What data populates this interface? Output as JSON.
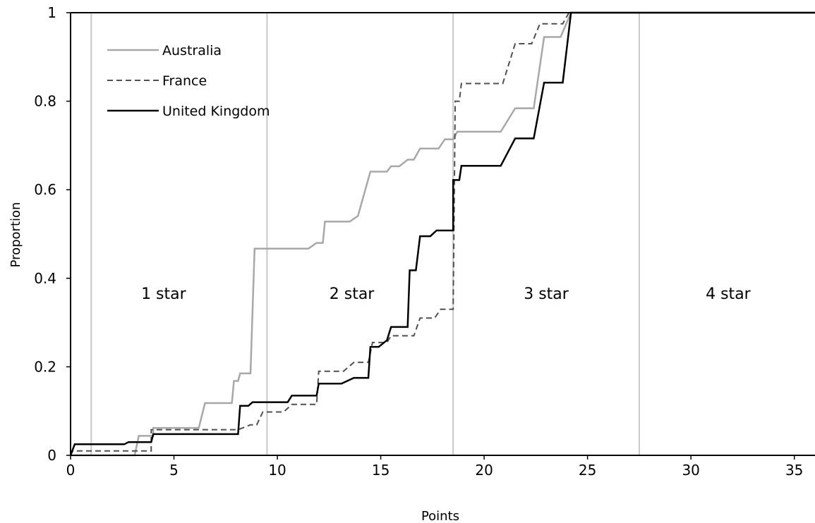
{
  "chart_data": {
    "type": "line",
    "xlabel": "Points",
    "ylabel": "Proportion",
    "xlim": [
      0,
      36
    ],
    "ylim": [
      0,
      1
    ],
    "x_ticks": [
      "0",
      "5",
      "10",
      "15",
      "20",
      "25",
      "30",
      "35"
    ],
    "y_ticks": [
      "0",
      "0.2",
      "0.4",
      "0.6",
      "0.8",
      "1"
    ],
    "grid": false,
    "legend": "top-left",
    "thresholds": [
      1,
      9.5,
      18.5,
      27.5
    ],
    "regions": [
      {
        "label": "1 star",
        "x": 4.5
      },
      {
        "label": "2 star",
        "x": 13.6
      },
      {
        "label": "3 star",
        "x": 23
      },
      {
        "label": "4 star",
        "x": 31.8
      }
    ],
    "series": [
      {
        "name": "Australia",
        "color": "#a8a8a8",
        "style": "solid",
        "points": [
          [
            0,
            0
          ],
          [
            3.1,
            0
          ],
          [
            3.3,
            0.044
          ],
          [
            4,
            0.044
          ],
          [
            4,
            0.062
          ],
          [
            6.2,
            0.062
          ],
          [
            6.5,
            0.118
          ],
          [
            7.8,
            0.118
          ],
          [
            7.9,
            0.168
          ],
          [
            8.1,
            0.168
          ],
          [
            8.2,
            0.185
          ],
          [
            8.7,
            0.185
          ],
          [
            8.9,
            0.467
          ],
          [
            11.5,
            0.467
          ],
          [
            11.9,
            0.48
          ],
          [
            12.2,
            0.48
          ],
          [
            12.3,
            0.528
          ],
          [
            13.5,
            0.528
          ],
          [
            13.9,
            0.541
          ],
          [
            14.5,
            0.641
          ],
          [
            15.3,
            0.641
          ],
          [
            15.5,
            0.653
          ],
          [
            15.9,
            0.653
          ],
          [
            16.3,
            0.668
          ],
          [
            16.6,
            0.668
          ],
          [
            16.9,
            0.693
          ],
          [
            17.8,
            0.693
          ],
          [
            18.1,
            0.714
          ],
          [
            18.5,
            0.714
          ],
          [
            18.7,
            0.731
          ],
          [
            20.8,
            0.731
          ],
          [
            21.5,
            0.784
          ],
          [
            22.4,
            0.784
          ],
          [
            22.9,
            0.945
          ],
          [
            23.7,
            0.945
          ],
          [
            24.2,
            1
          ],
          [
            36,
            1
          ]
        ]
      },
      {
        "name": "France",
        "color": "#505050",
        "style": "dashed",
        "points": [
          [
            0,
            0
          ],
          [
            0.1,
            0.01
          ],
          [
            3.9,
            0.01
          ],
          [
            3.9,
            0.058
          ],
          [
            8.1,
            0.058
          ],
          [
            8.7,
            0.069
          ],
          [
            9,
            0.069
          ],
          [
            9.3,
            0.098
          ],
          [
            10.3,
            0.098
          ],
          [
            10.7,
            0.115
          ],
          [
            11.9,
            0.115
          ],
          [
            12,
            0.19
          ],
          [
            13.2,
            0.19
          ],
          [
            13.7,
            0.21
          ],
          [
            14.4,
            0.21
          ],
          [
            14.6,
            0.255
          ],
          [
            15.3,
            0.255
          ],
          [
            15.5,
            0.27
          ],
          [
            16.6,
            0.27
          ],
          [
            16.9,
            0.31
          ],
          [
            17.6,
            0.31
          ],
          [
            17.9,
            0.33
          ],
          [
            18.5,
            0.33
          ],
          [
            18.6,
            0.8
          ],
          [
            18.8,
            0.8
          ],
          [
            18.9,
            0.84
          ],
          [
            20.9,
            0.84
          ],
          [
            21.5,
            0.93
          ],
          [
            22.3,
            0.93
          ],
          [
            22.7,
            0.975
          ],
          [
            23.8,
            0.975
          ],
          [
            24.1,
            1
          ],
          [
            36,
            1
          ]
        ]
      },
      {
        "name": "United Kingdom",
        "color": "#000000",
        "style": "solid",
        "points": [
          [
            0,
            0
          ],
          [
            0.2,
            0.025
          ],
          [
            2.6,
            0.025
          ],
          [
            2.8,
            0.03
          ],
          [
            3.9,
            0.03
          ],
          [
            4,
            0.048
          ],
          [
            8.1,
            0.048
          ],
          [
            8.2,
            0.112
          ],
          [
            8.6,
            0.112
          ],
          [
            8.8,
            0.12
          ],
          [
            10.5,
            0.12
          ],
          [
            10.7,
            0.135
          ],
          [
            11.9,
            0.135
          ],
          [
            12,
            0.162
          ],
          [
            13.1,
            0.162
          ],
          [
            13.7,
            0.175
          ],
          [
            14.4,
            0.175
          ],
          [
            14.5,
            0.245
          ],
          [
            14.9,
            0.245
          ],
          [
            15.3,
            0.26
          ],
          [
            15.5,
            0.29
          ],
          [
            16.3,
            0.29
          ],
          [
            16.4,
            0.418
          ],
          [
            16.7,
            0.418
          ],
          [
            16.9,
            0.495
          ],
          [
            17.4,
            0.495
          ],
          [
            17.7,
            0.508
          ],
          [
            18.5,
            0.508
          ],
          [
            18.5,
            0.622
          ],
          [
            18.8,
            0.622
          ],
          [
            18.9,
            0.654
          ],
          [
            20.8,
            0.654
          ],
          [
            21.5,
            0.716
          ],
          [
            22.4,
            0.716
          ],
          [
            22.9,
            0.842
          ],
          [
            23.8,
            0.842
          ],
          [
            24.2,
            1
          ],
          [
            36,
            1
          ]
        ]
      }
    ]
  }
}
